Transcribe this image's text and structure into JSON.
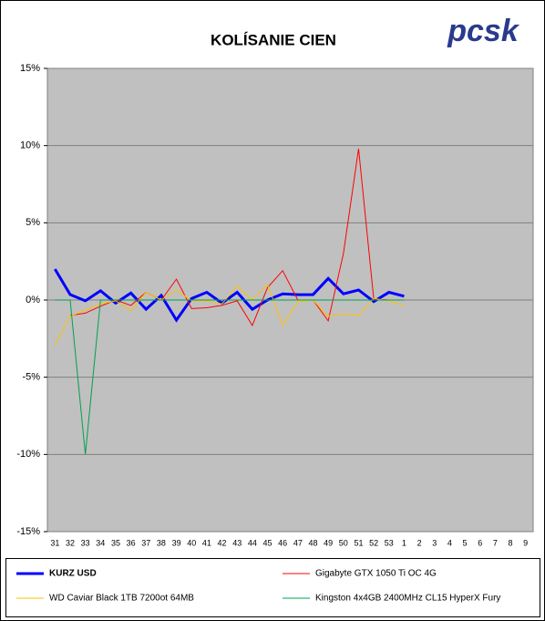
{
  "chart_data": {
    "type": "line",
    "title": "KOLÍSANIE CIEN",
    "logo": "pcsk",
    "categories": [
      "31",
      "32",
      "33",
      "34",
      "35",
      "36",
      "37",
      "38",
      "39",
      "40",
      "41",
      "42",
      "43",
      "44",
      "45",
      "46",
      "47",
      "48",
      "49",
      "50",
      "51",
      "52",
      "53",
      "1",
      "2",
      "3",
      "4",
      "5",
      "6",
      "7",
      "8",
      "9"
    ],
    "ylim": [
      -15,
      15
    ],
    "yticks": [
      {
        "value": -15,
        "label": "-15%"
      },
      {
        "value": -10,
        "label": "-10%"
      },
      {
        "value": -5,
        "label": "-5%"
      },
      {
        "value": 0,
        "label": "0%"
      },
      {
        "value": 5,
        "label": "5%"
      },
      {
        "value": 10,
        "label": "10%"
      },
      {
        "value": 15,
        "label": "15%"
      }
    ],
    "grid": true,
    "series": [
      {
        "name": "KURZ USD",
        "color": "#0000ff",
        "width": 3,
        "values": [
          2.0,
          0.35,
          -0.05,
          0.6,
          -0.2,
          0.45,
          -0.6,
          0.3,
          -1.3,
          0.1,
          0.5,
          -0.2,
          0.5,
          -0.6,
          0,
          0.4,
          0.35,
          0.35,
          1.4,
          0.4,
          0.65,
          -0.1,
          0.5,
          0.25,
          null,
          null,
          null,
          null,
          null,
          null,
          null,
          null
        ]
      },
      {
        "name": "Gigabyte GTX 1050 Ti OC 4G",
        "color": "#ff0000",
        "width": 1,
        "values": [
          null,
          -1.0,
          -0.85,
          -0.4,
          0,
          -0.35,
          0.5,
          0,
          1.35,
          -0.55,
          -0.5,
          -0.35,
          -0.05,
          -1.65,
          0.8,
          1.9,
          0,
          0,
          -1.35,
          3.0,
          9.8,
          0.05,
          0,
          null,
          null,
          null,
          null,
          null,
          null,
          null,
          null,
          null
        ]
      },
      {
        "name": "WD Caviar Black 1TB 7200ot 64MB",
        "color": "#ffc000",
        "width": 1,
        "values": [
          -2.9,
          -1.05,
          -0.65,
          -0.25,
          -0.05,
          -0.7,
          0.5,
          0,
          0.65,
          -0.05,
          -0.05,
          -0.25,
          0.9,
          0,
          1.0,
          -1.65,
          -0.1,
          0,
          -1.05,
          -0.9,
          -1.0,
          0.1,
          -0.05,
          -0.35,
          null,
          null,
          null,
          null,
          null,
          null,
          null,
          null
        ]
      },
      {
        "name": "Kingston 4x4GB 2400MHz CL15 HyperX Fury",
        "color": "#00a050",
        "width": 1,
        "values": [
          0,
          0,
          -10,
          0,
          0,
          0,
          0,
          0,
          0,
          0,
          0,
          0,
          0,
          0,
          0,
          0,
          0,
          0,
          0,
          0,
          0,
          0,
          0,
          0,
          null,
          null,
          null,
          null,
          null,
          null,
          null,
          null
        ]
      }
    ]
  }
}
